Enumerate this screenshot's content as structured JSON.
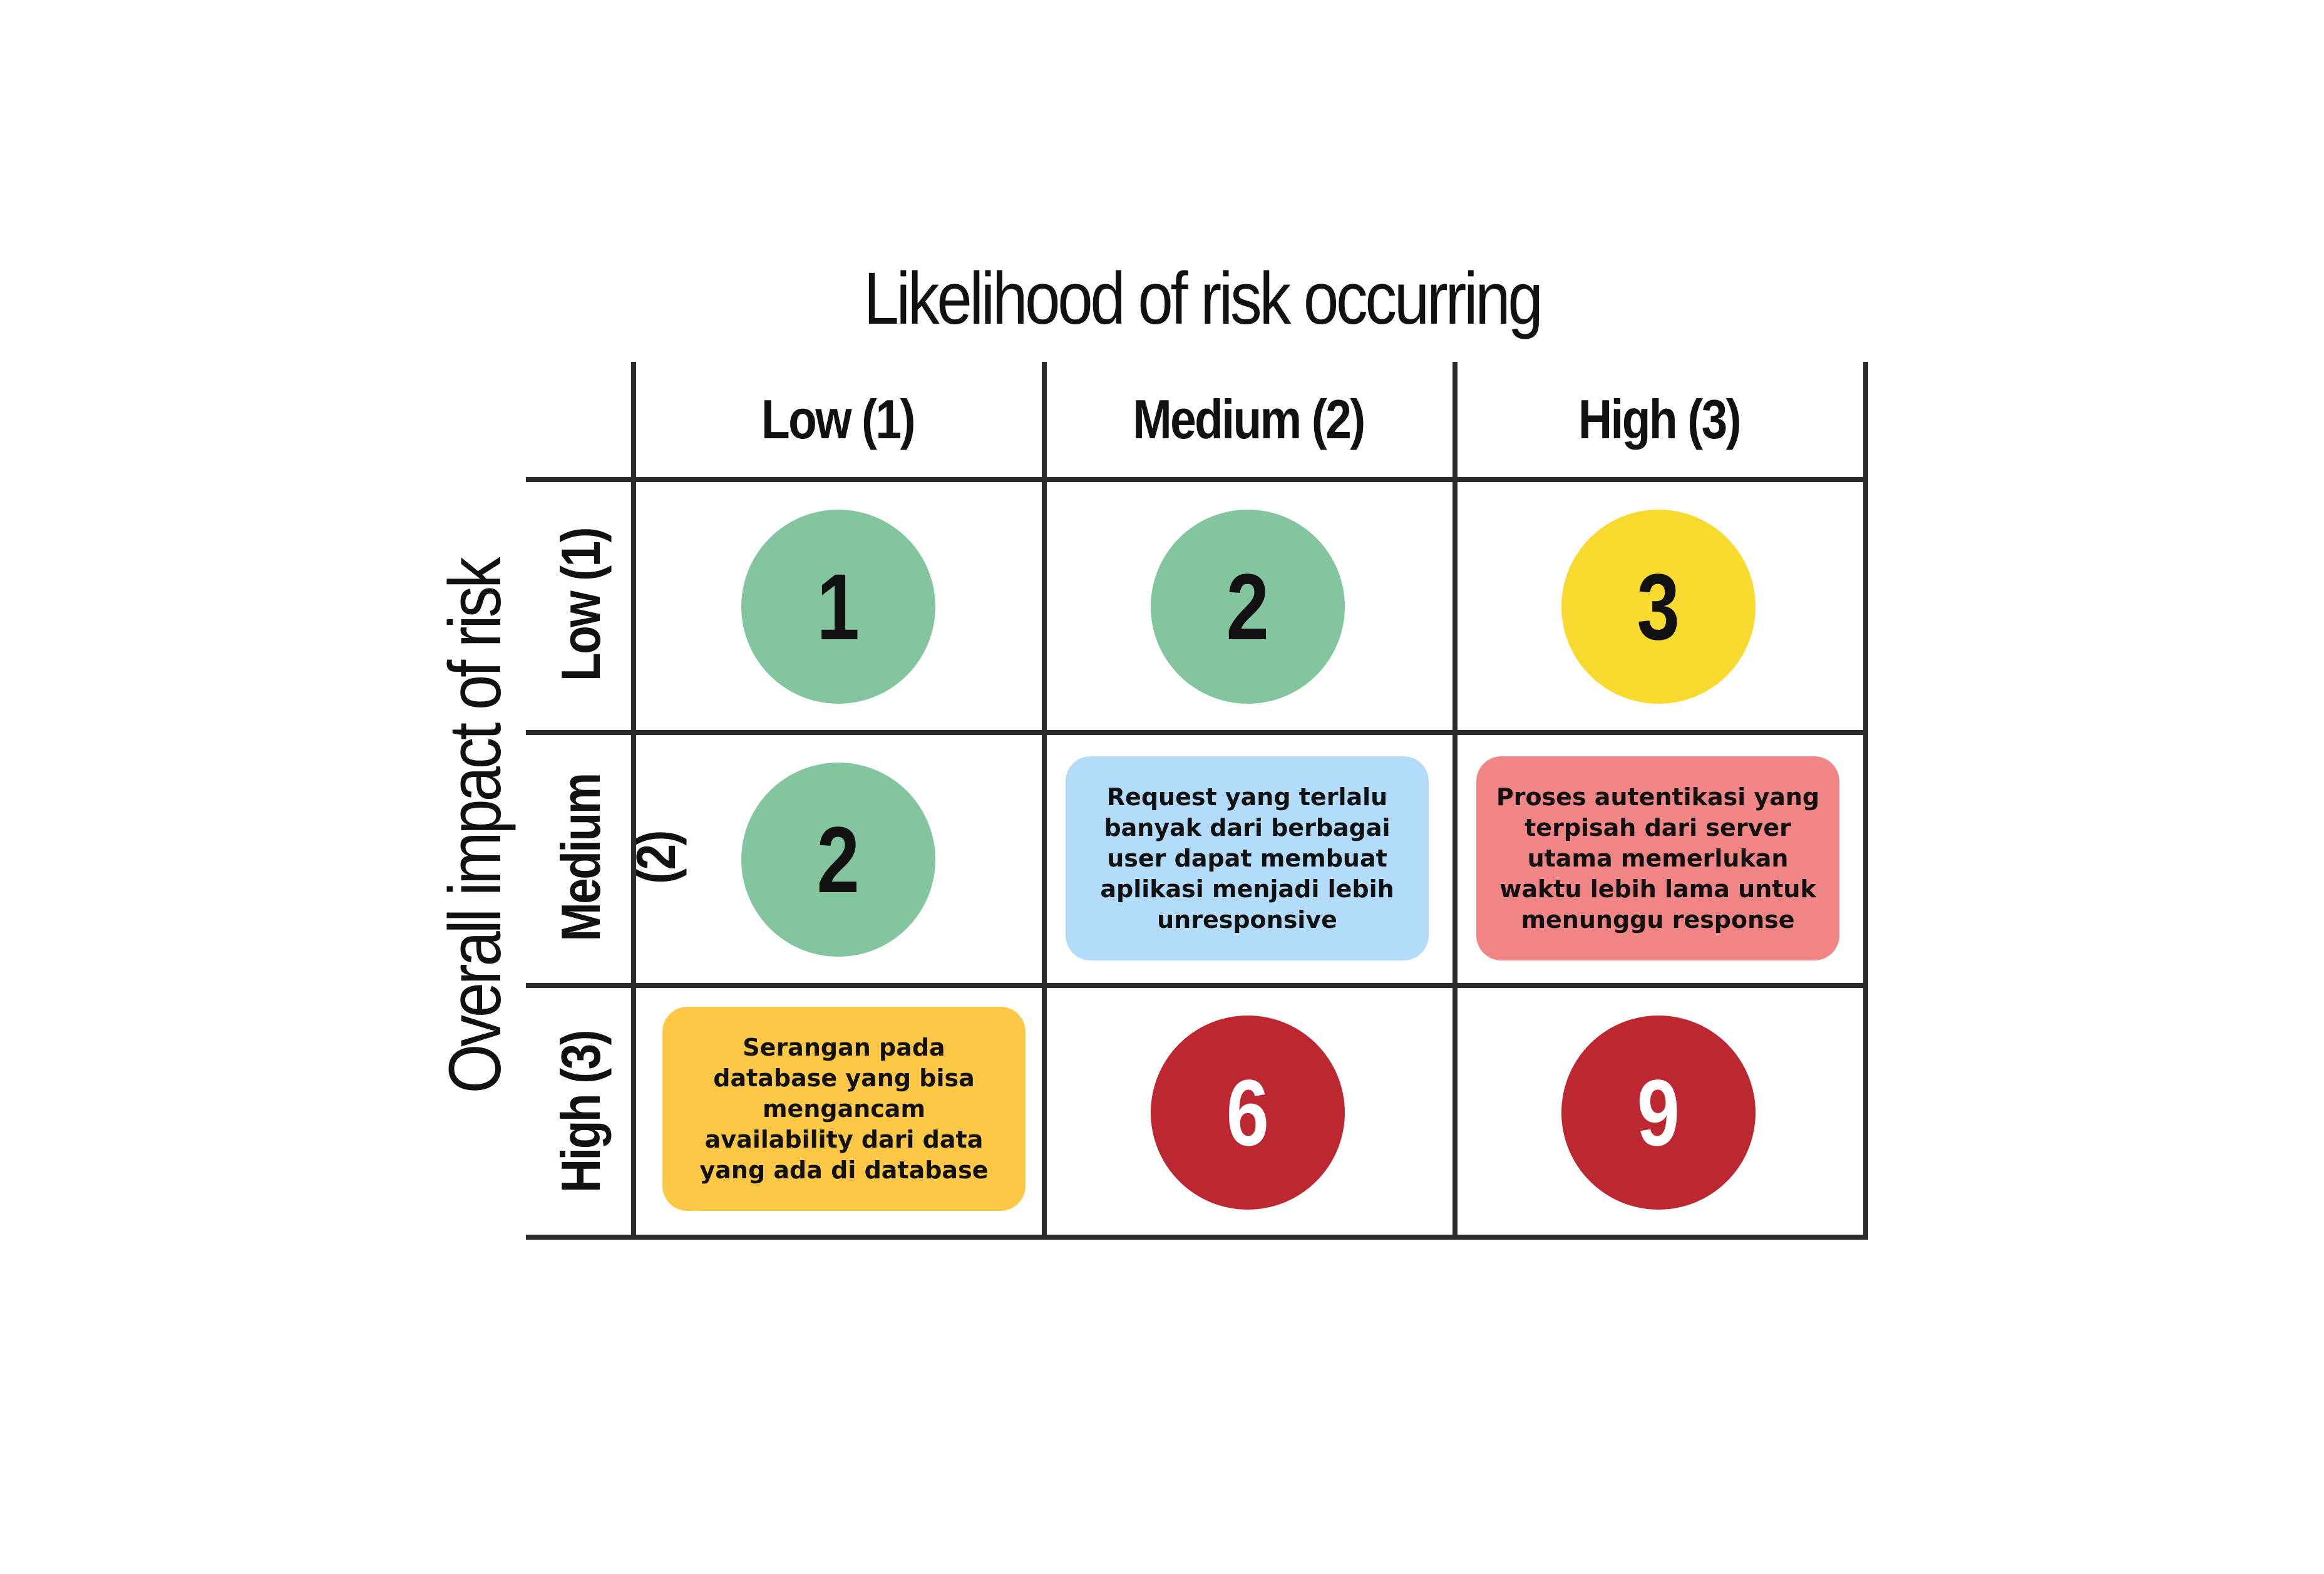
{
  "titles": {
    "likelihood": "Likelihood of risk occurring",
    "impact": "Overall impact of risk"
  },
  "columns": [
    {
      "label": "Low (1)"
    },
    {
      "label": "Medium (2)"
    },
    {
      "label": "High (3)"
    }
  ],
  "rows": [
    {
      "label": "Low (1)"
    },
    {
      "label": "Medium (2)"
    },
    {
      "label": "High (3)"
    }
  ],
  "cells": {
    "r1c1": {
      "type": "score",
      "value": "1",
      "color": "#83c59f",
      "text_color": "#111111"
    },
    "r1c2": {
      "type": "score",
      "value": "2",
      "color": "#83c59f",
      "text_color": "#111111"
    },
    "r1c3": {
      "type": "score",
      "value": "3",
      "color": "#f9da2e",
      "text_color": "#111111"
    },
    "r2c1": {
      "type": "score",
      "value": "2",
      "color": "#83c59f",
      "text_color": "#111111"
    },
    "r2c2": {
      "type": "note",
      "text": "Request yang terlalu\nbanyak dari berbagai\nuser dapat membuat\naplikasi menjadi lebih\nunresponsive",
      "color": "#b3dcfb"
    },
    "r2c3": {
      "type": "note",
      "text": "Proses autentikasi yang\nterpisah dari server\nutama memerlukan\nwaktu lebih lama untuk\nmenunggu response",
      "color": "#ef8585"
    },
    "r3c1": {
      "type": "note",
      "text": "Serangan pada\ndatabase yang bisa\nmengancam\navailability dari data\nyang ada di database",
      "color": "#fdc845"
    },
    "r3c2": {
      "type": "score",
      "value": "6",
      "color": "#bd2731",
      "text_color": "#ffffff"
    },
    "r3c3": {
      "type": "score",
      "value": "9",
      "color": "#bd2731",
      "text_color": "#ffffff"
    }
  }
}
